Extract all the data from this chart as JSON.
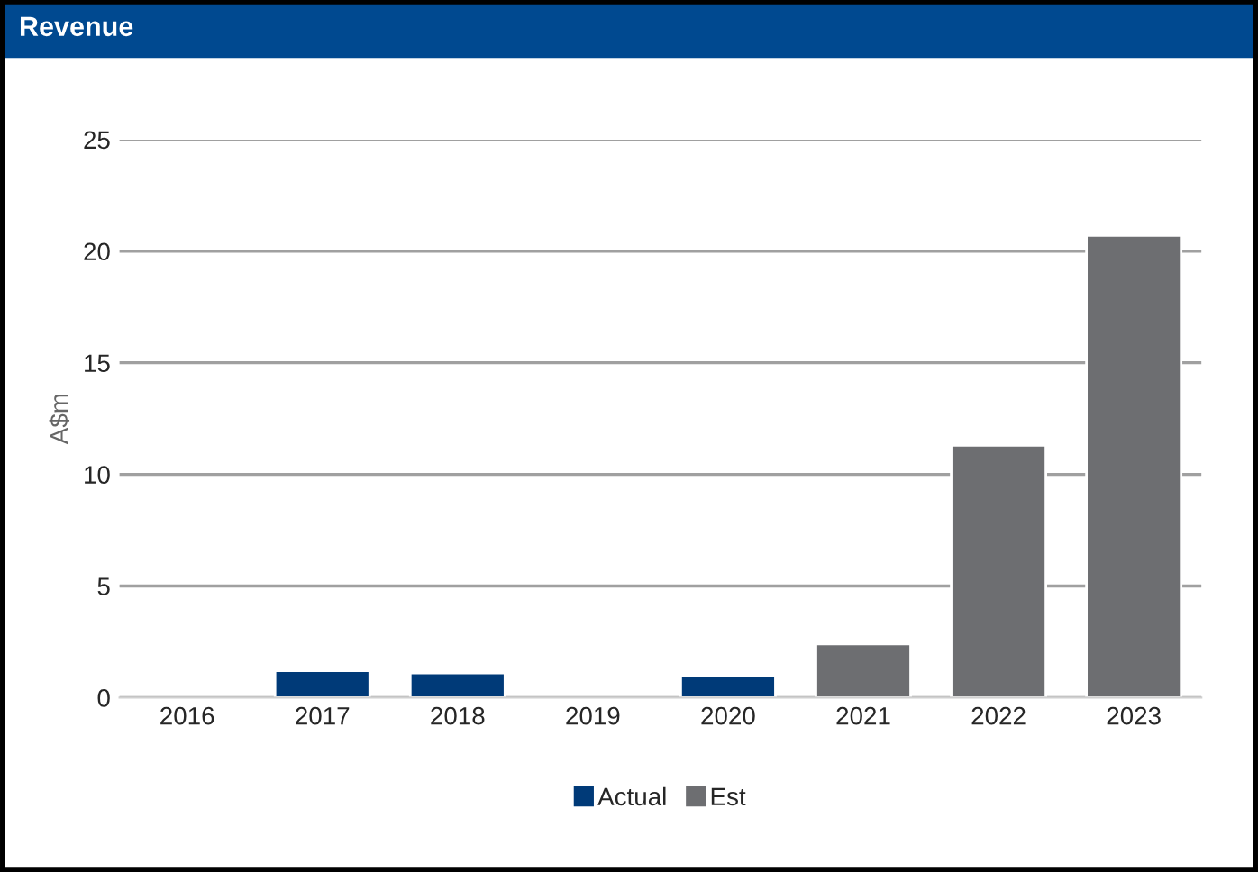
{
  "chart_data": {
    "type": "bar",
    "title": "Revenue",
    "ylabel": "A$m",
    "categories": [
      "2016",
      "2017",
      "2018",
      "2019",
      "2020",
      "2021",
      "2022",
      "2023"
    ],
    "series": [
      {
        "name": "Actual",
        "color": "#003a78",
        "values": [
          null,
          1.2,
          1.1,
          null,
          1.0,
          null,
          null,
          null
        ]
      },
      {
        "name": "Est",
        "color": "#6d6e71",
        "values": [
          null,
          null,
          null,
          null,
          null,
          2.4,
          11.3,
          20.7
        ]
      }
    ],
    "stacked": true,
    "ylim": [
      0,
      25
    ],
    "yticks": [
      0,
      5,
      10,
      15,
      20,
      25
    ],
    "grid": "y",
    "legend": "bottom"
  }
}
